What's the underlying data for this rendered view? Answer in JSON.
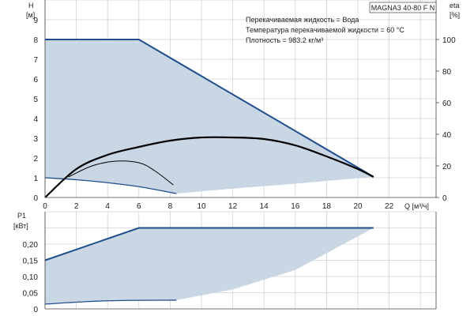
{
  "model": "MAGNA3 40-80 F N",
  "notes": [
    "Перекачиваемая жидкость = Вода",
    "Температура перекачиваемой жидкости = 60 °C",
    "Плотность = 983.2 кг/м³"
  ],
  "colors": {
    "fill": "#c9d6e4",
    "curve": "#1f4e8c",
    "eff": "#000000",
    "grid": "#d2d2d2"
  },
  "chart_data": [
    {
      "type": "line",
      "title": "",
      "xlabel": "Q [м³/ч]",
      "ylabel_unit": "[м]",
      "ylabel_name": "H",
      "y2label_name": "eta",
      "y2label_unit": "[%]",
      "xlim": [
        0,
        25
      ],
      "ylim": [
        0,
        10
      ],
      "y2lim": [
        0,
        125
      ],
      "xticks": [
        "0",
        "2",
        "4",
        "6",
        "8",
        "10",
        "12",
        "14",
        "16",
        "18",
        "20",
        "22"
      ],
      "yticks": [
        "0",
        "1",
        "2",
        "3",
        "4",
        "5",
        "6",
        "7",
        "8",
        "9"
      ],
      "y2ticks": [
        "0",
        "20",
        "40",
        "60",
        "80",
        "100"
      ],
      "grid": true,
      "series": [
        {
          "role": "max-curve",
          "x": [
            0,
            6,
            21
          ],
          "y": [
            8,
            8,
            1.05
          ]
        },
        {
          "role": "min-curve",
          "x": [
            0,
            2,
            4,
            6,
            8.4
          ],
          "y": [
            1,
            0.9,
            0.75,
            0.55,
            0.2
          ]
        },
        {
          "role": "area-bottom",
          "x": [
            8.4,
            12,
            16,
            21
          ],
          "y": [
            0.2,
            0.45,
            0.7,
            1.05
          ]
        },
        {
          "role": "eta-max",
          "x": [
            0,
            2,
            4,
            6,
            8,
            10,
            12,
            14,
            16,
            18,
            20,
            21
          ],
          "y": [
            0,
            18,
            27,
            32,
            36,
            38,
            38,
            37,
            33,
            26,
            18,
            13
          ]
        },
        {
          "role": "eta-min",
          "x": [
            1.5,
            3,
            4.5,
            6,
            7,
            8.2
          ],
          "y": [
            13,
            20,
            23,
            22,
            17,
            8
          ]
        }
      ]
    },
    {
      "type": "line",
      "title": "",
      "ylabel_name": "P1",
      "ylabel_unit": "[кВт]",
      "xlim": [
        0,
        25
      ],
      "ylim": [
        0,
        0.3
      ],
      "yticks": [
        "0",
        "0,05",
        "0,10",
        "0,15",
        "0,20"
      ],
      "grid": true,
      "series": [
        {
          "role": "max-power",
          "x": [
            0,
            6,
            21
          ],
          "y": [
            0.15,
            0.25,
            0.25
          ]
        },
        {
          "role": "min-power",
          "x": [
            0,
            4,
            8.4
          ],
          "y": [
            0.015,
            0.025,
            0.027
          ]
        },
        {
          "role": "area-bottom",
          "x": [
            8.4,
            12,
            16,
            21
          ],
          "y": [
            0.027,
            0.06,
            0.12,
            0.25
          ]
        }
      ]
    }
  ]
}
